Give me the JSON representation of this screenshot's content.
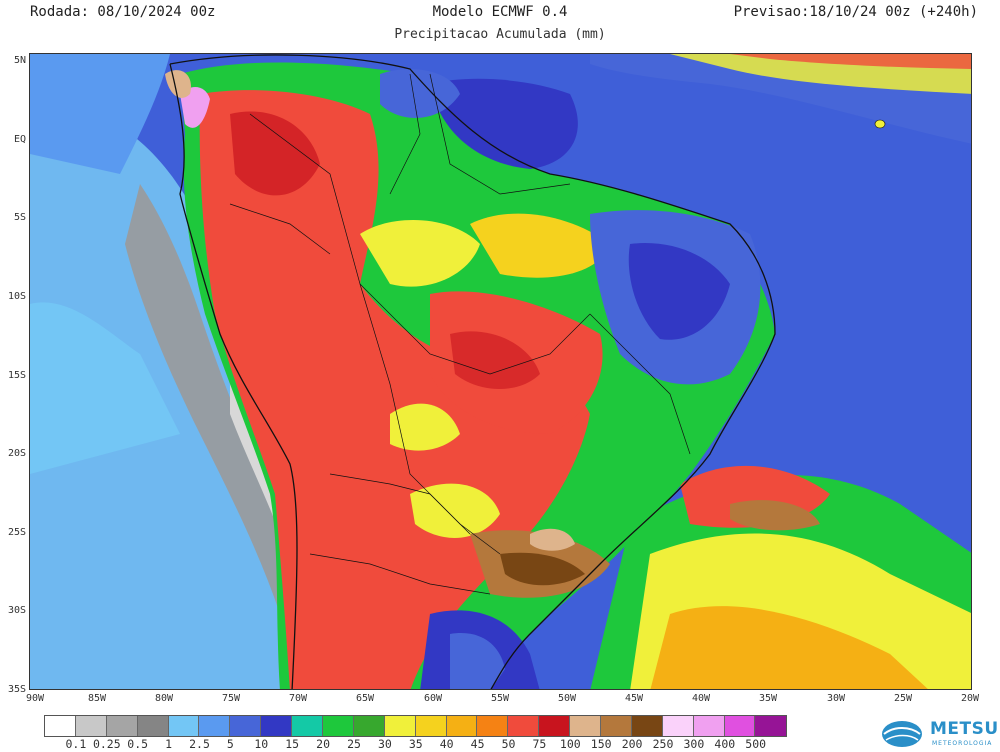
{
  "header": {
    "run": "Rodada: 08/10/2024 00z",
    "model": "Modelo ECMWF 0.4",
    "forecast": "Previsao:18/10/24 00z (+240h)",
    "subtitle": "Precipitacao Acumulada (mm)"
  },
  "map": {
    "lat_labels": [
      "5N",
      "EQ",
      "5S",
      "10S",
      "15S",
      "20S",
      "25S",
      "30S",
      "35S"
    ],
    "lon_labels": [
      "90W",
      "85W",
      "80W",
      "75W",
      "70W",
      "65W",
      "60W",
      "55W",
      "50W",
      "45W",
      "40W",
      "35W",
      "30W",
      "25W",
      "20W"
    ],
    "lat_range": [
      5,
      -35
    ],
    "lon_range": [
      -90,
      -20
    ]
  },
  "legend": {
    "colors": [
      "#ffffff",
      "#c8c8c8",
      "#a5a5a5",
      "#858585",
      "#73c6f5",
      "#5a9af0",
      "#4766d8",
      "#3238c4",
      "#14c9a6",
      "#1ec83c",
      "#37a82e",
      "#f0f03a",
      "#f5d21e",
      "#f5b014",
      "#f58214",
      "#f04b3c",
      "#c8141e",
      "#deb48c",
      "#b4783c",
      "#784614",
      "#fad2fa",
      "#f0a0f0",
      "#e050e0",
      "#961496"
    ],
    "labels": [
      "0.1",
      "0.25",
      "0.5",
      "1",
      "2.5",
      "5",
      "10",
      "15",
      "20",
      "25",
      "30",
      "35",
      "40",
      "45",
      "50",
      "75",
      "100",
      "150",
      "200",
      "250",
      "300",
      "400",
      "500"
    ]
  },
  "logo": {
    "name": "METSUL",
    "sub": "METEOROLOGIA",
    "icon": "globe-logo-icon"
  }
}
